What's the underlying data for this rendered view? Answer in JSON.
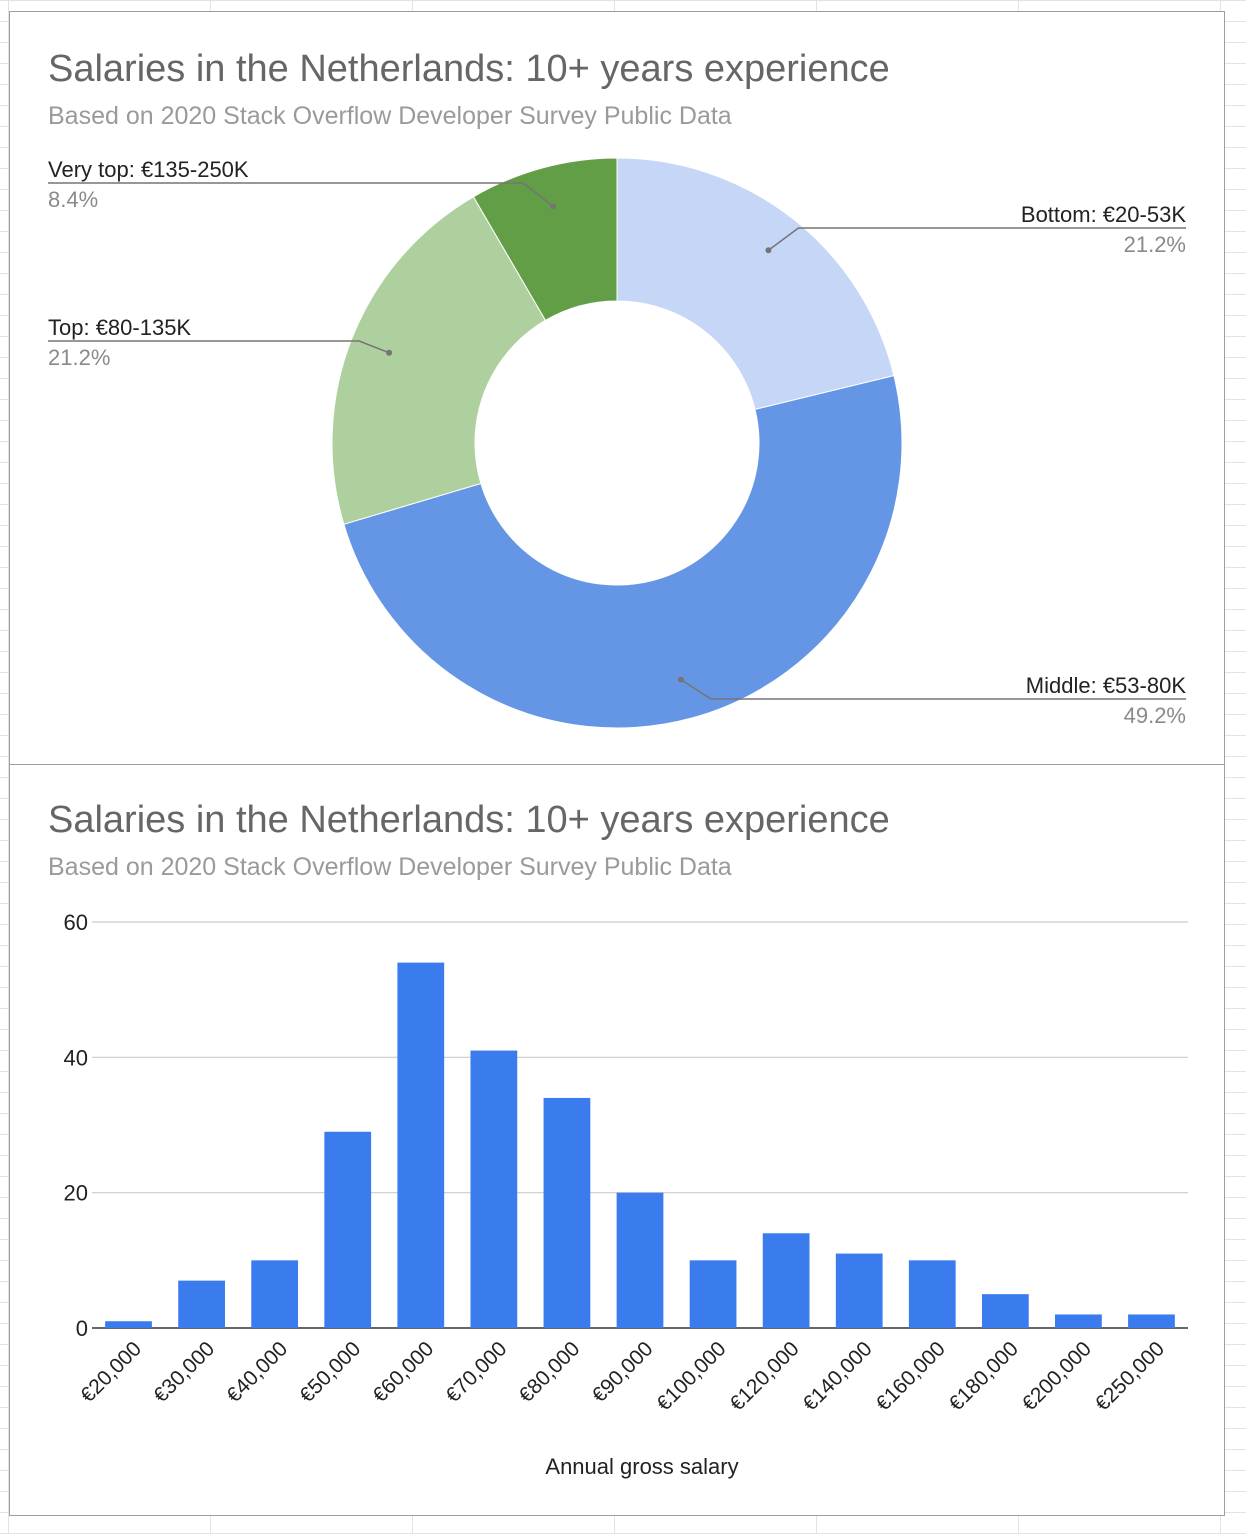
{
  "chart_data": [
    {
      "type": "pie",
      "donut": true,
      "title": "Salaries in the Netherlands: 10+ years experience",
      "subtitle": "Based on 2020 Stack Overflow Developer Survey Public Data",
      "slices": [
        {
          "label": "Bottom: €20-53K",
          "pct_label": "21.2%",
          "value": 21.2,
          "color": "#c5d6f6"
        },
        {
          "label": "Middle: €53-80K",
          "pct_label": "49.2%",
          "value": 49.2,
          "color": "#6596e6"
        },
        {
          "label": "Top: €80-135K",
          "pct_label": "21.2%",
          "value": 21.2,
          "color": "#aed09e"
        },
        {
          "label": "Very top: €135-250K",
          "pct_label": "8.4%",
          "value": 8.4,
          "color": "#619e46"
        }
      ],
      "label_placement": "outside-with-leader-lines"
    },
    {
      "type": "bar",
      "title": "Salaries in the Netherlands: 10+ years experience",
      "subtitle": "Based on 2020 Stack Overflow Developer Survey Public Data",
      "categories": [
        "€20,000",
        "€30,000",
        "€40,000",
        "€50,000",
        "€60,000",
        "€70,000",
        "€80,000",
        "€90,000",
        "€100,000",
        "€120,000",
        "€140,000",
        "€160,000",
        "€180,000",
        "€200,000",
        "€250,000"
      ],
      "values": [
        1,
        7,
        10,
        29,
        54,
        41,
        34,
        20,
        10,
        14,
        11,
        10,
        5,
        2,
        2
      ],
      "xlabel": "Annual gross salary",
      "ylabel": "",
      "ylim": [
        0,
        60
      ],
      "yticks": [
        "0",
        "20",
        "40",
        "60"
      ],
      "grid": true,
      "bar_color": "#3a7ced"
    }
  ]
}
